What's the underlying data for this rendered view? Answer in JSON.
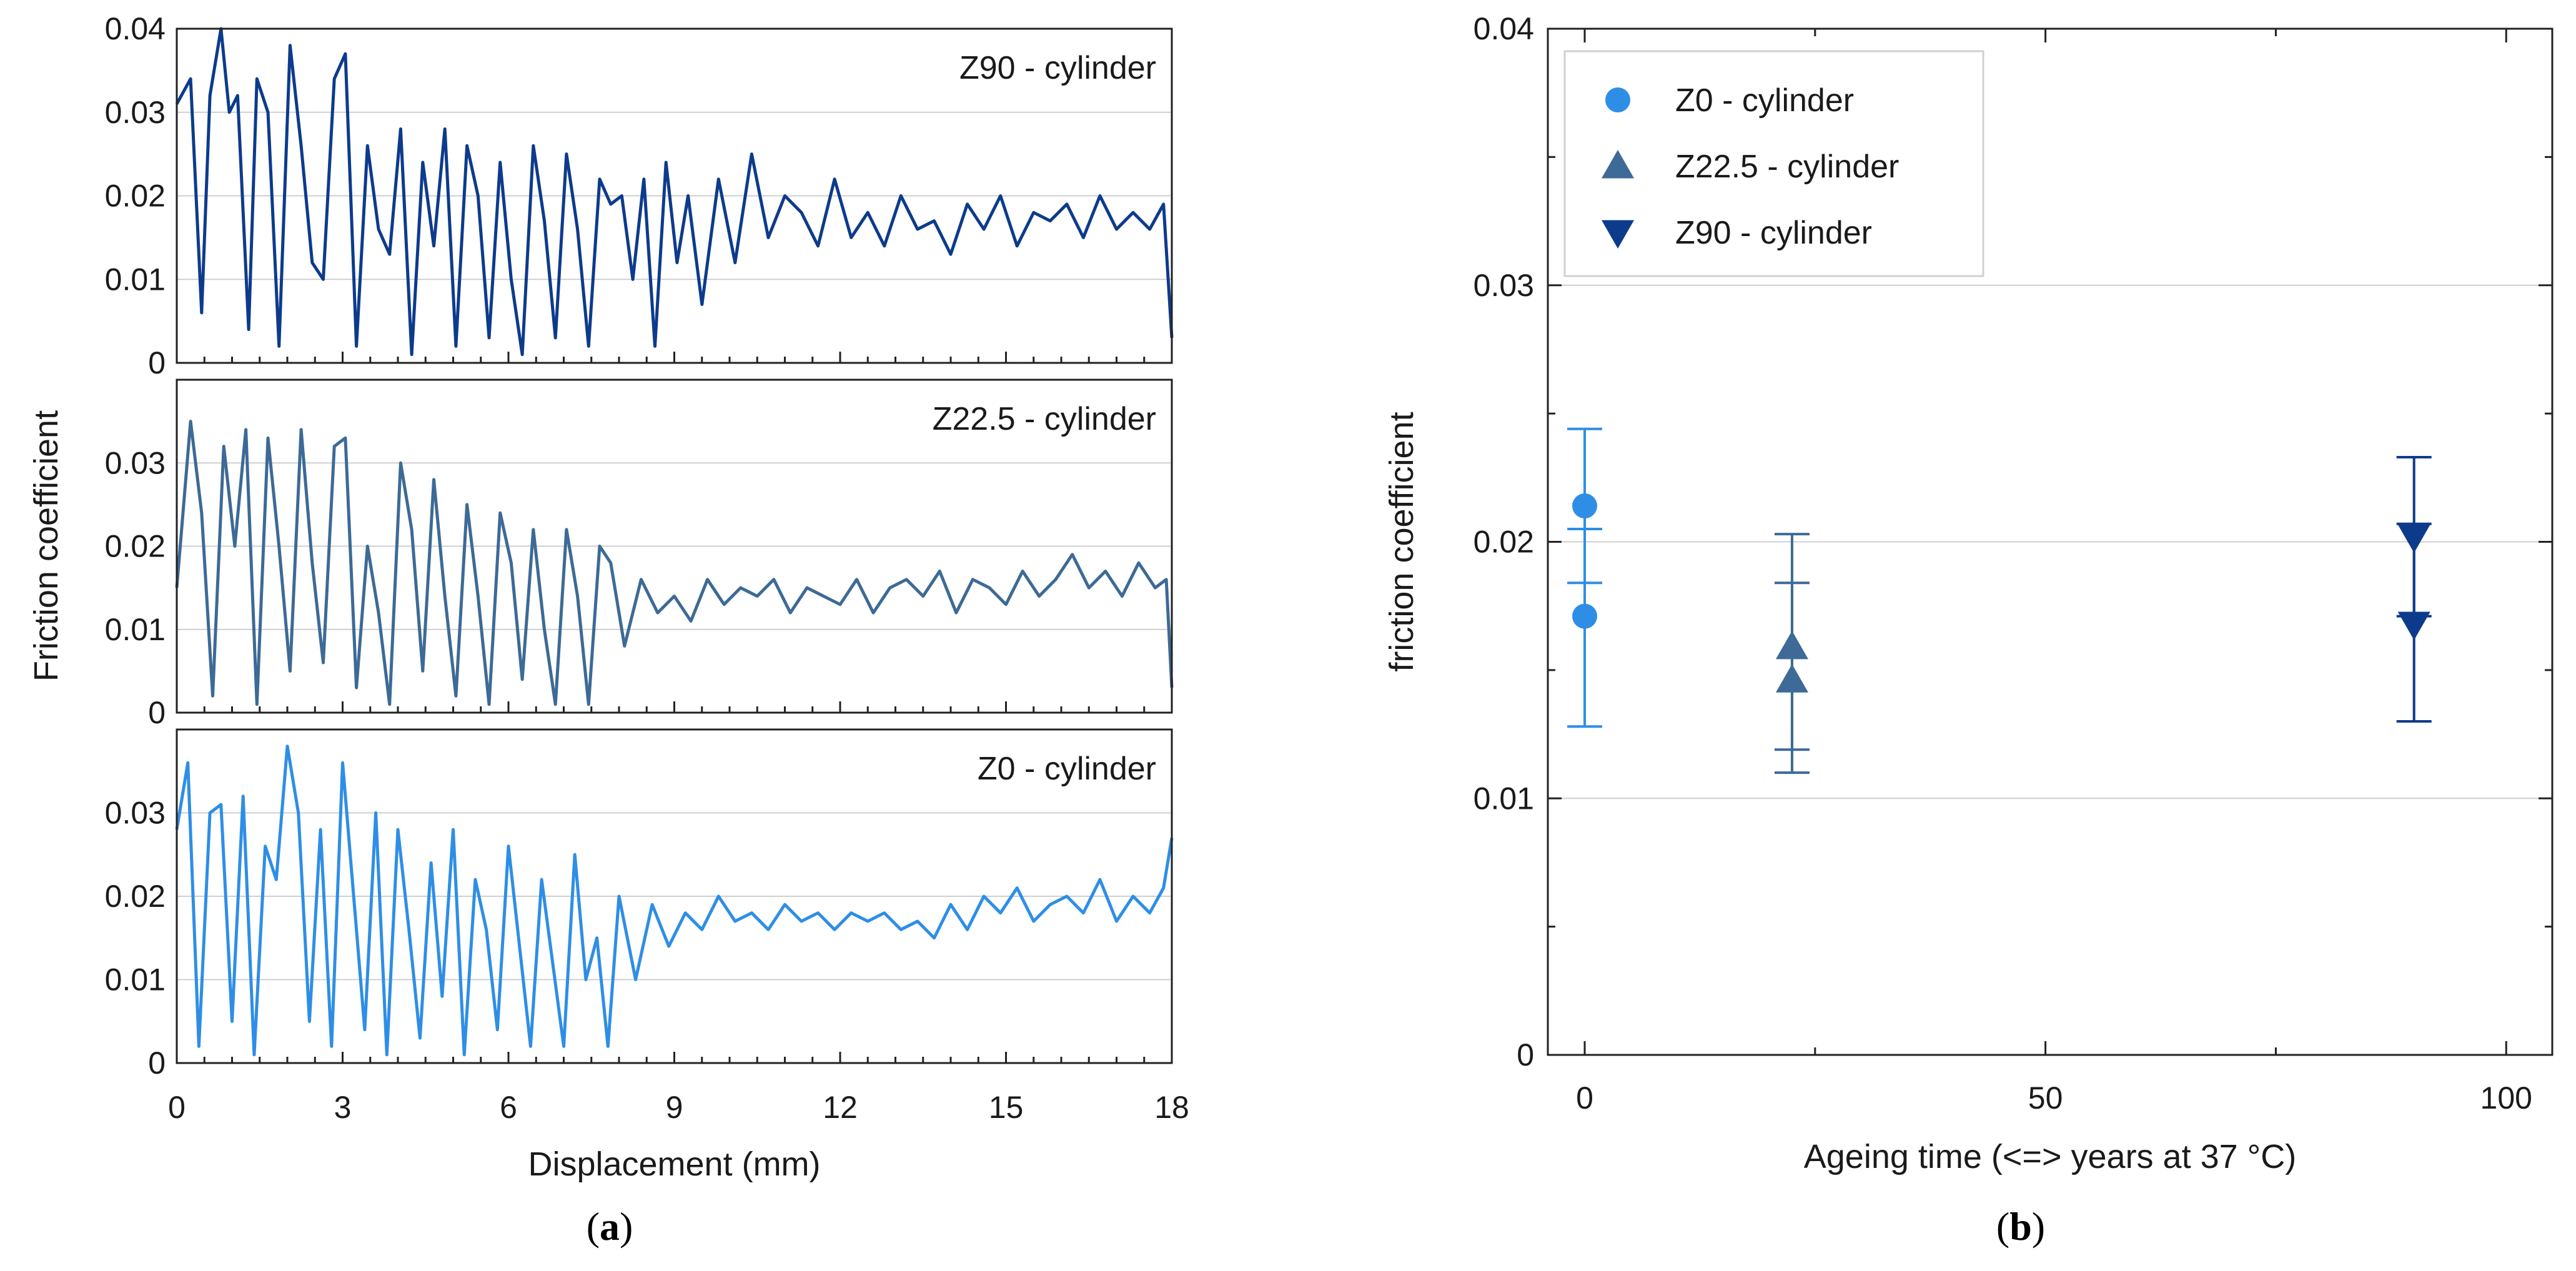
{
  "chart_data": [
    {
      "id": "a",
      "type": "line",
      "panel_label": "a",
      "xlabel": "Displacement (mm)",
      "ylabel": "Friction coefficient",
      "xlim": [
        0,
        18
      ],
      "x_ticks": [
        "0",
        "3",
        "6",
        "9",
        "12",
        "15",
        "18"
      ],
      "grid": true,
      "subplots": [
        {
          "name": "Z90 - cylinder",
          "color": "#0d3b8c",
          "ylim": [
            0,
            0.04
          ],
          "y_ticks": [
            "0",
            "0.01",
            "0.02",
            "0.03",
            "0.04"
          ],
          "x": [
            0,
            0.25,
            0.45,
            0.6,
            0.8,
            0.95,
            1.1,
            1.3,
            1.45,
            1.65,
            1.85,
            2.05,
            2.25,
            2.45,
            2.65,
            2.85,
            3.05,
            3.25,
            3.45,
            3.65,
            3.85,
            4.05,
            4.25,
            4.45,
            4.65,
            4.85,
            5.05,
            5.25,
            5.45,
            5.65,
            5.85,
            6.05,
            6.25,
            6.45,
            6.65,
            6.85,
            7.05,
            7.25,
            7.45,
            7.65,
            7.85,
            8.05,
            8.25,
            8.45,
            8.65,
            8.85,
            9.05,
            9.25,
            9.5,
            9.8,
            10.1,
            10.4,
            10.7,
            11.0,
            11.3,
            11.6,
            11.9,
            12.2,
            12.5,
            12.8,
            13.1,
            13.4,
            13.7,
            14.0,
            14.3,
            14.6,
            14.9,
            15.2,
            15.5,
            15.8,
            16.1,
            16.4,
            16.7,
            17.0,
            17.3,
            17.6,
            17.85,
            18.0
          ],
          "y": [
            0.031,
            0.034,
            0.006,
            0.032,
            0.04,
            0.03,
            0.032,
            0.004,
            0.034,
            0.03,
            0.002,
            0.038,
            0.026,
            0.012,
            0.01,
            0.034,
            0.037,
            0.002,
            0.026,
            0.016,
            0.013,
            0.028,
            0.001,
            0.024,
            0.014,
            0.028,
            0.002,
            0.026,
            0.02,
            0.003,
            0.024,
            0.01,
            0.001,
            0.026,
            0.017,
            0.003,
            0.025,
            0.016,
            0.002,
            0.022,
            0.019,
            0.02,
            0.01,
            0.022,
            0.002,
            0.024,
            0.012,
            0.02,
            0.007,
            0.022,
            0.012,
            0.025,
            0.015,
            0.02,
            0.018,
            0.014,
            0.022,
            0.015,
            0.018,
            0.014,
            0.02,
            0.016,
            0.017,
            0.013,
            0.019,
            0.016,
            0.02,
            0.014,
            0.018,
            0.017,
            0.019,
            0.015,
            0.02,
            0.016,
            0.018,
            0.016,
            0.019,
            0.003
          ]
        },
        {
          "name": "Z22.5 - cylinder",
          "color": "#3d6a96",
          "ylim": [
            0,
            0.04
          ],
          "y_ticks": [
            "0",
            "0.01",
            "0.02",
            "0.03"
          ],
          "x": [
            0,
            0.25,
            0.45,
            0.65,
            0.85,
            1.05,
            1.25,
            1.45,
            1.65,
            1.85,
            2.05,
            2.25,
            2.45,
            2.65,
            2.85,
            3.05,
            3.25,
            3.45,
            3.65,
            3.85,
            4.05,
            4.25,
            4.45,
            4.65,
            4.85,
            5.05,
            5.25,
            5.45,
            5.65,
            5.85,
            6.05,
            6.25,
            6.45,
            6.65,
            6.85,
            7.05,
            7.25,
            7.45,
            7.65,
            7.85,
            8.1,
            8.4,
            8.7,
            9.0,
            9.3,
            9.6,
            9.9,
            10.2,
            10.5,
            10.8,
            11.1,
            11.4,
            11.7,
            12.0,
            12.3,
            12.6,
            12.9,
            13.2,
            13.5,
            13.8,
            14.1,
            14.4,
            14.7,
            15.0,
            15.3,
            15.6,
            15.9,
            16.2,
            16.5,
            16.8,
            17.1,
            17.4,
            17.7,
            17.9,
            18.0
          ],
          "y": [
            0.015,
            0.035,
            0.024,
            0.002,
            0.032,
            0.02,
            0.034,
            0.001,
            0.033,
            0.02,
            0.005,
            0.034,
            0.018,
            0.006,
            0.032,
            0.033,
            0.003,
            0.02,
            0.012,
            0.001,
            0.03,
            0.022,
            0.005,
            0.028,
            0.014,
            0.002,
            0.025,
            0.014,
            0.001,
            0.024,
            0.018,
            0.004,
            0.022,
            0.01,
            0.001,
            0.022,
            0.014,
            0.001,
            0.02,
            0.018,
            0.008,
            0.016,
            0.012,
            0.014,
            0.011,
            0.016,
            0.013,
            0.015,
            0.014,
            0.016,
            0.012,
            0.015,
            0.014,
            0.013,
            0.016,
            0.012,
            0.015,
            0.016,
            0.014,
            0.017,
            0.012,
            0.016,
            0.015,
            0.013,
            0.017,
            0.014,
            0.016,
            0.019,
            0.015,
            0.017,
            0.014,
            0.018,
            0.015,
            0.016,
            0.003
          ]
        },
        {
          "name": "Z0 - cylinder",
          "color": "#2e8ee6",
          "ylim": [
            0,
            0.04
          ],
          "y_ticks": [
            "0",
            "0.01",
            "0.02",
            "0.03"
          ],
          "x": [
            0,
            0.2,
            0.4,
            0.6,
            0.8,
            1.0,
            1.2,
            1.4,
            1.6,
            1.8,
            2.0,
            2.2,
            2.4,
            2.6,
            2.8,
            3.0,
            3.2,
            3.4,
            3.6,
            3.8,
            4.0,
            4.2,
            4.4,
            4.6,
            4.8,
            5.0,
            5.2,
            5.4,
            5.6,
            5.8,
            6.0,
            6.2,
            6.4,
            6.6,
            6.8,
            7.0,
            7.2,
            7.4,
            7.6,
            7.8,
            8.0,
            8.3,
            8.6,
            8.9,
            9.2,
            9.5,
            9.8,
            10.1,
            10.4,
            10.7,
            11.0,
            11.3,
            11.6,
            11.9,
            12.2,
            12.5,
            12.8,
            13.1,
            13.4,
            13.7,
            14.0,
            14.3,
            14.6,
            14.9,
            15.2,
            15.5,
            15.8,
            16.1,
            16.4,
            16.7,
            17.0,
            17.3,
            17.6,
            17.85,
            18.0
          ],
          "y": [
            0.028,
            0.036,
            0.002,
            0.03,
            0.031,
            0.005,
            0.032,
            0.001,
            0.026,
            0.022,
            0.038,
            0.03,
            0.005,
            0.028,
            0.002,
            0.036,
            0.02,
            0.004,
            0.03,
            0.001,
            0.028,
            0.016,
            0.003,
            0.024,
            0.008,
            0.028,
            0.001,
            0.022,
            0.016,
            0.004,
            0.026,
            0.014,
            0.002,
            0.022,
            0.012,
            0.002,
            0.025,
            0.01,
            0.015,
            0.002,
            0.02,
            0.01,
            0.019,
            0.014,
            0.018,
            0.016,
            0.02,
            0.017,
            0.018,
            0.016,
            0.019,
            0.017,
            0.018,
            0.016,
            0.018,
            0.017,
            0.018,
            0.016,
            0.017,
            0.015,
            0.019,
            0.016,
            0.02,
            0.018,
            0.021,
            0.017,
            0.019,
            0.02,
            0.018,
            0.022,
            0.017,
            0.02,
            0.018,
            0.021,
            0.027
          ]
        }
      ]
    },
    {
      "id": "b",
      "type": "scatter",
      "panel_label": "b",
      "xlabel": "Ageing time (<=> years at 37 °C)",
      "ylabel": "friction coefficient",
      "xlim": [
        -4,
        105
      ],
      "ylim": [
        0,
        0.04
      ],
      "x_ticks": [
        "0",
        "50",
        "100"
      ],
      "x_tick_values": [
        0,
        50,
        100
      ],
      "y_ticks": [
        "0",
        "0.01",
        "0.02",
        "0.03",
        "0.04"
      ],
      "y_tick_values": [
        0,
        0.01,
        0.02,
        0.03,
        0.04
      ],
      "grid": true,
      "legend_position": "top-left",
      "series": [
        {
          "name": "Z0 - cylinder",
          "marker": "circle",
          "color": "#2e8ee6",
          "points": [
            {
              "x": 0,
              "y": 0.0214,
              "err_low": 0.0184,
              "err_high": 0.0244
            },
            {
              "x": 0,
              "y": 0.0171,
              "err_low": 0.0128,
              "err_high": 0.0205
            }
          ]
        },
        {
          "name": "Z22.5 - cylinder",
          "marker": "triangle-up",
          "color": "#3d6a96",
          "points": [
            {
              "x": 22.5,
              "y": 0.0159,
              "err_low": 0.0119,
              "err_high": 0.0184
            },
            {
              "x": 22.5,
              "y": 0.0146,
              "err_low": 0.011,
              "err_high": 0.0203
            }
          ]
        },
        {
          "name": "Z90 - cylinder",
          "marker": "triangle-down",
          "color": "#0d3b8c",
          "points": [
            {
              "x": 90,
              "y": 0.0202,
              "err_low": 0.0171,
              "err_high": 0.0233
            },
            {
              "x": 90,
              "y": 0.0168,
              "err_low": 0.013,
              "err_high": 0.0207
            }
          ]
        }
      ]
    }
  ]
}
